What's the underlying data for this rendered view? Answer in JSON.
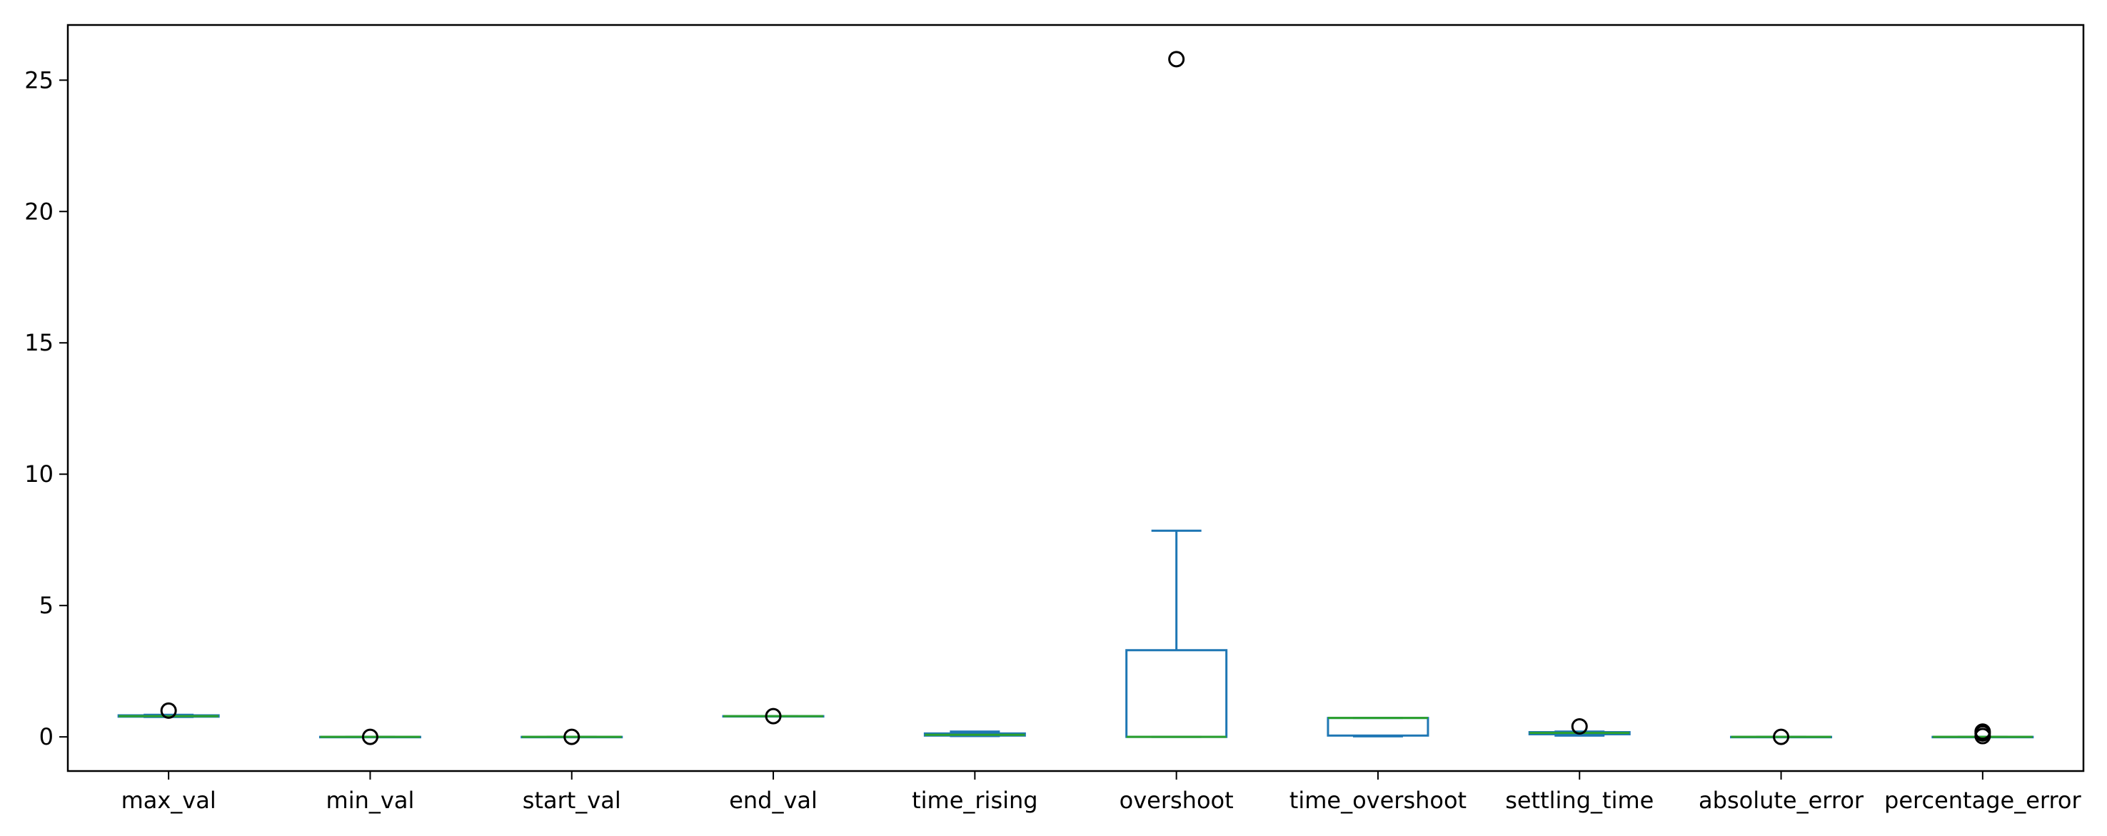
{
  "chart_data": {
    "type": "box",
    "title": "",
    "xlabel": "",
    "ylabel": "",
    "ylim": [
      -1.3,
      27.1
    ],
    "yticks": [
      0,
      5,
      10,
      15,
      20,
      25
    ],
    "ytick_labels": [
      "0",
      "5",
      "10",
      "15",
      "20",
      "25"
    ],
    "grid": false,
    "colors": {
      "box": "#1f77b4",
      "median": "#2ca02c",
      "flier": "#000000",
      "axes": "#000000"
    },
    "categories": [
      "max_val",
      "min_val",
      "start_val",
      "end_val",
      "time_rising",
      "overshoot",
      "time_overshoot",
      "settling_time",
      "absolute_error",
      "percentage_error"
    ],
    "boxes": [
      {
        "q1": 0.77,
        "median": 0.79,
        "q3": 0.82,
        "whisker_low": 0.76,
        "whisker_high": 0.84,
        "fliers": [
          1.0
        ]
      },
      {
        "q1": 0.0,
        "median": 0.0,
        "q3": 0.0,
        "whisker_low": 0.0,
        "whisker_high": 0.0,
        "fliers": [
          0.0
        ]
      },
      {
        "q1": 0.0,
        "median": 0.0,
        "q3": 0.0,
        "whisker_low": 0.0,
        "whisker_high": 0.0,
        "fliers": [
          0.0
        ]
      },
      {
        "q1": 0.79,
        "median": 0.79,
        "q3": 0.79,
        "whisker_low": 0.79,
        "whisker_high": 0.79,
        "fliers": [
          0.79
        ]
      },
      {
        "q1": 0.05,
        "median": 0.08,
        "q3": 0.13,
        "whisker_low": 0.03,
        "whisker_high": 0.2,
        "fliers": []
      },
      {
        "q1": 0.0,
        "median": 0.0,
        "q3": 3.3,
        "whisker_low": 0.0,
        "whisker_high": 7.85,
        "fliers": [
          25.8
        ]
      },
      {
        "q1": 0.05,
        "median": 0.72,
        "q3": 0.72,
        "whisker_low": 0.02,
        "whisker_high": 0.72,
        "fliers": []
      },
      {
        "q1": 0.1,
        "median": 0.15,
        "q3": 0.18,
        "whisker_low": 0.05,
        "whisker_high": 0.2,
        "fliers": [
          0.4
        ]
      },
      {
        "q1": 0.0,
        "median": 0.0,
        "q3": 0.0,
        "whisker_low": 0.0,
        "whisker_high": 0.0,
        "fliers": [
          0.0
        ]
      },
      {
        "q1": 0.0,
        "median": 0.0,
        "q3": 0.0,
        "whisker_low": 0.0,
        "whisker_high": 0.0,
        "fliers": [
          0.03,
          0.13,
          0.2
        ]
      }
    ]
  }
}
